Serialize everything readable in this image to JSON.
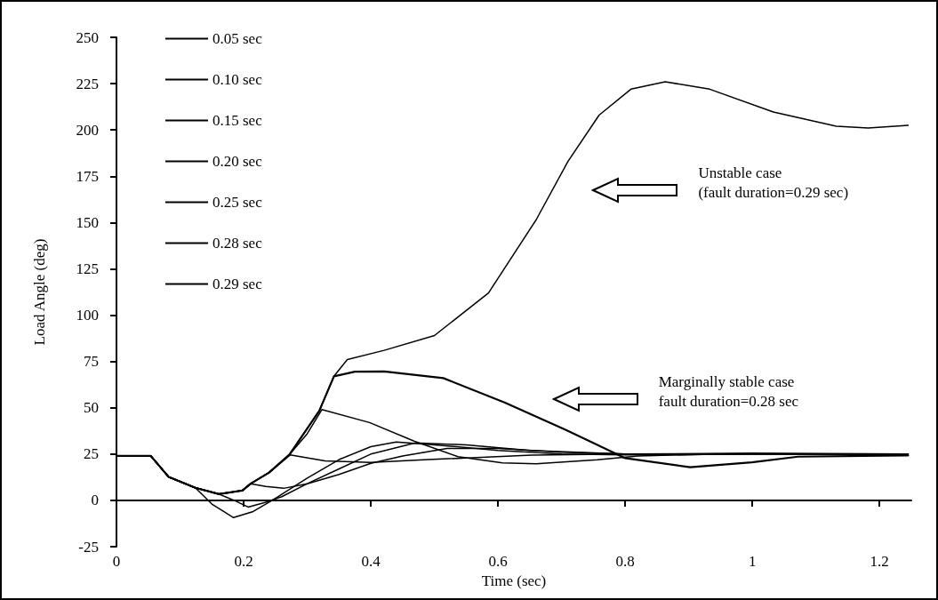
{
  "chart_data": {
    "type": "line",
    "xlabel": "Time (sec)",
    "ylabel": "Load Angle (deg)",
    "xlim": [
      0,
      1.25
    ],
    "xticks": [
      0,
      0.2,
      0.4,
      0.6,
      0.8,
      1,
      1.2
    ],
    "ylim": [
      -25,
      250
    ],
    "yticks": [
      -25,
      0,
      25,
      50,
      75,
      100,
      125,
      150,
      175,
      200,
      225,
      250
    ],
    "legend": "top left",
    "marker": "none",
    "line_style": "solid",
    "annotations": [
      "Unstable case\n(fault duration=0.29 sec)",
      "Marginally stable case\nfault duration=0.28 sec"
    ],
    "series": [
      {
        "name": "0.05 sec",
        "color": "#000000",
        "x": [
          0,
          0.054,
          0.082,
          0.124,
          0.15,
          0.184,
          0.215,
          0.245,
          0.3,
          0.35,
          0.4,
          0.44,
          0.5,
          0.6,
          0.7,
          0.8,
          1.0,
          1.245
        ],
        "values": [
          24,
          24,
          12.7,
          6.8,
          -2,
          -9.3,
          -6,
          0,
          12,
          22,
          29,
          31.5,
          30,
          27,
          25,
          24.5,
          25,
          25
        ]
      },
      {
        "name": "0.10 sec",
        "color": "#000000",
        "x": [
          0,
          0.054,
          0.082,
          0.124,
          0.161,
          0.185,
          0.207,
          0.235,
          0.26,
          0.3,
          0.35,
          0.4,
          0.47,
          0.55,
          0.65,
          0.8,
          1.0,
          1.245
        ],
        "values": [
          24,
          24,
          12.7,
          6.8,
          3.4,
          0,
          -3.6,
          -1,
          2,
          9,
          17,
          25,
          31,
          30,
          27,
          25,
          25,
          25
        ]
      },
      {
        "name": "0.15 sec",
        "color": "#000000",
        "x": [
          0,
          0.054,
          0.082,
          0.124,
          0.161,
          0.198,
          0.211,
          0.235,
          0.263,
          0.3,
          0.35,
          0.4,
          0.45,
          0.52,
          0.6,
          0.7,
          0.8,
          1.0,
          1.245
        ],
        "values": [
          24,
          24,
          12.7,
          6.8,
          3.4,
          5.3,
          9,
          7.5,
          6.5,
          9,
          14,
          20,
          24,
          28,
          28,
          26,
          25,
          25.5,
          25
        ]
      },
      {
        "name": "0.20 sec",
        "color": "#000000",
        "x": [
          0,
          0.054,
          0.082,
          0.124,
          0.161,
          0.198,
          0.211,
          0.24,
          0.273,
          0.328,
          0.4,
          0.49,
          0.653,
          0.8,
          1.245
        ],
        "values": [
          24,
          24,
          12.7,
          6.8,
          3.4,
          5.3,
          9,
          15,
          24.5,
          21.3,
          20.5,
          22,
          24.4,
          25,
          25
        ]
      },
      {
        "name": "0.25 sec",
        "color": "#000000",
        "x": [
          0,
          0.054,
          0.082,
          0.124,
          0.161,
          0.198,
          0.211,
          0.24,
          0.272,
          0.3,
          0.323,
          0.398,
          0.468,
          0.537,
          0.607,
          0.66,
          0.756,
          0.82,
          0.95,
          1.245
        ],
        "values": [
          24,
          24,
          12.7,
          6.8,
          3.4,
          5.3,
          9,
          15,
          24.7,
          36,
          49,
          42,
          32,
          23.6,
          20.2,
          19.8,
          21.9,
          24,
          25,
          25
        ]
      },
      {
        "name": "0.28 sec",
        "color": "#000000",
        "x": [
          0,
          0.054,
          0.082,
          0.124,
          0.161,
          0.198,
          0.211,
          0.24,
          0.272,
          0.319,
          0.342,
          0.375,
          0.421,
          0.514,
          0.611,
          0.707,
          0.8,
          0.902,
          0.999,
          1.072,
          1.245
        ],
        "values": [
          24,
          24,
          12.7,
          6.8,
          3.4,
          5.3,
          9,
          15,
          24.7,
          48.4,
          67,
          69.5,
          69.6,
          66,
          52.7,
          38,
          22.8,
          17.9,
          20.5,
          23.6,
          24.3
        ]
      },
      {
        "name": "0.29 sec",
        "color": "#000000",
        "x": [
          0,
          0.054,
          0.082,
          0.124,
          0.161,
          0.198,
          0.211,
          0.24,
          0.272,
          0.319,
          0.342,
          0.363,
          0.421,
          0.5,
          0.585,
          0.66,
          0.71,
          0.759,
          0.809,
          0.863,
          0.933,
          1.033,
          1.132,
          1.182,
          1.245
        ],
        "values": [
          24,
          24,
          12.7,
          6.8,
          3.4,
          5.3,
          9,
          15,
          24.7,
          48.4,
          67,
          76,
          81,
          89,
          112,
          151.5,
          183,
          208,
          222,
          226,
          222,
          209.7,
          202,
          201,
          202.5
        ]
      }
    ]
  }
}
